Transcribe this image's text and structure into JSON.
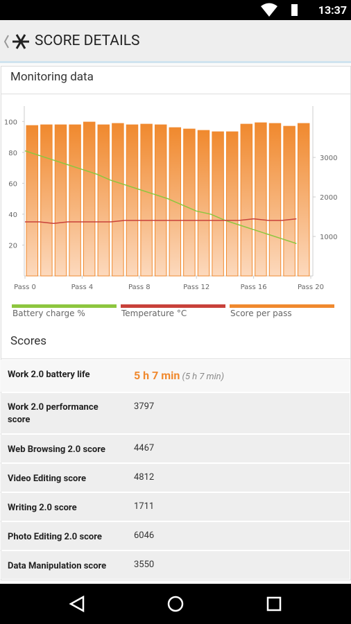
{
  "status_bar": {
    "time": "13:37"
  },
  "header": {
    "title": "SCORE DETAILS"
  },
  "monitoring": {
    "title": "Monitoring data"
  },
  "chart_data": {
    "type": "bar",
    "x": [
      0,
      1,
      2,
      3,
      4,
      5,
      6,
      7,
      8,
      9,
      10,
      11,
      12,
      13,
      14,
      15,
      16,
      17,
      18,
      19
    ],
    "xlim": [
      0,
      20
    ],
    "xticks": [
      {
        "value": 0,
        "label": "Pass 0"
      },
      {
        "value": 4,
        "label": "Pass 4"
      },
      {
        "value": 8,
        "label": "Pass 8"
      },
      {
        "value": 12,
        "label": "Pass 12"
      },
      {
        "value": 16,
        "label": "Pass 16"
      },
      {
        "value": 20,
        "label": "Pass 20"
      }
    ],
    "ylim": [
      0,
      110
    ],
    "yticks": [
      20,
      40,
      60,
      80,
      100
    ],
    "y2lim": [
      0,
      4300
    ],
    "y2ticks": [
      1000,
      2000,
      3000
    ],
    "series": [
      {
        "name": "Battery charge %",
        "type": "line",
        "color": "#8dc63f",
        "values": [
          81,
          78,
          75,
          72,
          69,
          66,
          62,
          59,
          56,
          53,
          50,
          46,
          42,
          40,
          36,
          33,
          30,
          27,
          24,
          21
        ]
      },
      {
        "name": "Temperature °C",
        "type": "line",
        "color": "#c8413a",
        "values": [
          35,
          35,
          34,
          35,
          35,
          35,
          35,
          36,
          36,
          36,
          36,
          36,
          36,
          36,
          36,
          36,
          37,
          36,
          36,
          37
        ]
      },
      {
        "name": "Score per pass",
        "type": "bar",
        "axis": "y2",
        "color": "#f0892e",
        "values": [
          3807,
          3825,
          3825,
          3825,
          3895,
          3825,
          3860,
          3825,
          3842,
          3825,
          3754,
          3719,
          3684,
          3649,
          3649,
          3842,
          3877,
          3860,
          3789,
          3860
        ]
      }
    ]
  },
  "scores": {
    "title": "Scores",
    "rows": [
      {
        "label": "Work 2.0 battery life",
        "value": "5 h 7 min",
        "detail": "(5 h 7 min)"
      },
      {
        "label": "Work 2.0 performance score",
        "value": "3797"
      },
      {
        "label": "Web Browsing 2.0 score",
        "value": "4467"
      },
      {
        "label": "Video Editing score",
        "value": "4812"
      },
      {
        "label": "Writing 2.0 score",
        "value": "1711"
      },
      {
        "label": "Photo Editing 2.0 score",
        "value": "6046"
      },
      {
        "label": "Data Manipulation score",
        "value": "3550"
      }
    ]
  }
}
